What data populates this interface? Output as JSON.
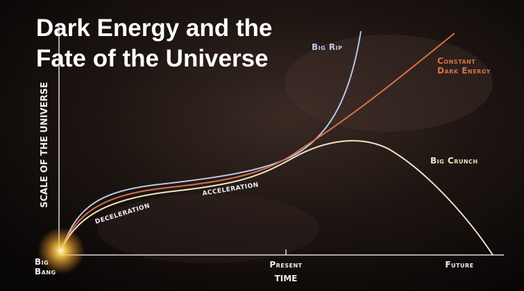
{
  "title": {
    "lines": [
      "Dark Energy and the",
      "Fate of the Universe"
    ]
  },
  "axes": {
    "y_label": "SCALE OF THE UNIVERSE",
    "x_label": "TIME"
  },
  "x_markers": {
    "start": [
      "Big",
      "Bang"
    ],
    "present": "Present",
    "future": "Future"
  },
  "curves": {
    "big_rip": "Big Rip",
    "constant": [
      "Constant",
      "Dark Energy"
    ],
    "big_crunch": "Big Crunch"
  },
  "phases": {
    "deceleration": "DECELERATION",
    "acceleration": "ACCELERATION"
  }
}
